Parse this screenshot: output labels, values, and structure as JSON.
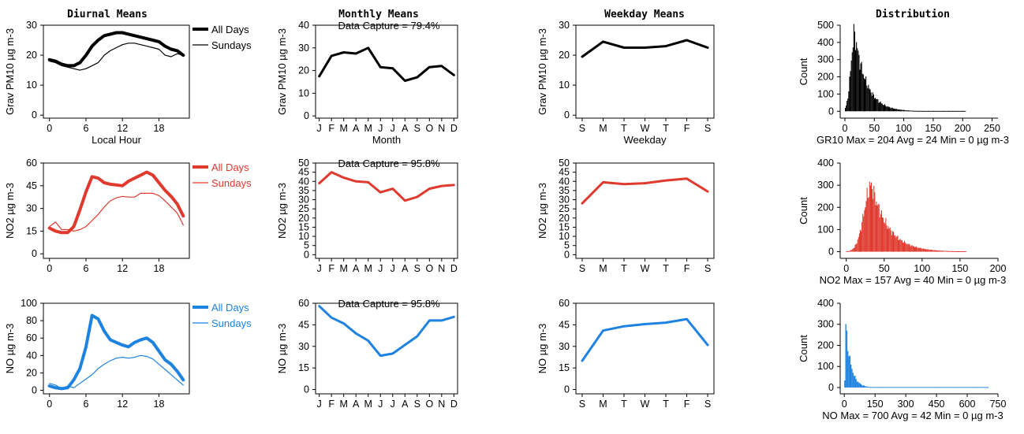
{
  "column_titles": [
    "Diurnal Means",
    "Monthly Means",
    "Weekday Means",
    "Distribution"
  ],
  "colors": {
    "pm10": "#000000",
    "no2": "#e03a2f",
    "no": "#1e82e0"
  },
  "chart_data": [
    {
      "type": "line",
      "row": 0,
      "col": 0,
      "ylabel": "Grav PM10 µg m-3",
      "xlabel": "Local Hour",
      "xlim": [
        -1,
        23
      ],
      "ylim": [
        -1,
        30
      ],
      "xticks": [
        0,
        6,
        12,
        18
      ],
      "yticks": [
        0,
        10,
        20,
        30
      ],
      "x": [
        0,
        1,
        2,
        3,
        4,
        5,
        6,
        7,
        8,
        9,
        10,
        11,
        12,
        13,
        14,
        15,
        16,
        17,
        18,
        19,
        20,
        21,
        22
      ],
      "series": [
        {
          "name": "All Days",
          "color": "#000000",
          "width": 4,
          "values": [
            18.5,
            18,
            17,
            16.5,
            16.5,
            17.5,
            20,
            23,
            25,
            26.5,
            27,
            27.5,
            27.5,
            27,
            26.5,
            26,
            25.5,
            25,
            24.5,
            23,
            22,
            21.5,
            20
          ]
        },
        {
          "name": "Sundays",
          "color": "#000000",
          "width": 1.2,
          "values": [
            18,
            17.5,
            16.5,
            16,
            15.5,
            15,
            15.5,
            16.5,
            17.5,
            20,
            21.5,
            22.5,
            23.5,
            24,
            24,
            23.5,
            23,
            22.5,
            22,
            20,
            19.5,
            20.5,
            20
          ]
        }
      ]
    },
    {
      "type": "line",
      "row": 0,
      "col": 1,
      "ylabel": "Grav PM10 µg m-3",
      "xlabel": "Month",
      "annotation": "Data Capture = 79.4%",
      "xlim": [
        0.7,
        12.3
      ],
      "ylim": [
        -1,
        40
      ],
      "categories": [
        "J",
        "F",
        "M",
        "A",
        "M",
        "J",
        "J",
        "A",
        "S",
        "O",
        "N",
        "D"
      ],
      "yticks": [
        0,
        10,
        20,
        30,
        40
      ],
      "series": [
        {
          "name": "",
          "color": "#000000",
          "width": 3,
          "values": [
            17.5,
            26.5,
            28,
            27.5,
            30,
            21.5,
            21,
            15.5,
            17,
            21.5,
            22,
            18
          ]
        }
      ]
    },
    {
      "type": "line",
      "row": 0,
      "col": 2,
      "ylabel": "Grav PM10 µg m-3",
      "xlabel": "Weekday",
      "xlim": [
        0.7,
        7.3
      ],
      "ylim": [
        -1,
        30
      ],
      "categories": [
        "S",
        "M",
        "T",
        "W",
        "T",
        "F",
        "S"
      ],
      "yticks": [
        0,
        10,
        20,
        30
      ],
      "series": [
        {
          "name": "",
          "color": "#000000",
          "width": 3,
          "values": [
            19.5,
            24.5,
            22.5,
            22.5,
            23,
            25,
            22.5
          ]
        }
      ]
    },
    {
      "type": "bar",
      "row": 0,
      "col": 3,
      "ylabel": "Count",
      "xlabel": "GR10 Max = 204 Avg = 24 Min = 0 µg m-3",
      "xlim": [
        -8,
        260
      ],
      "ylim": [
        -40,
        500
      ],
      "xticks": [
        0,
        50,
        100,
        150,
        200,
        250
      ],
      "yticks": [
        0,
        100,
        200,
        300,
        400,
        500
      ],
      "color": "#000000",
      "profile": {
        "xmax": 204,
        "peak_x": 16,
        "peak": 450,
        "rise": 9,
        "decay": 20
      }
    },
    {
      "type": "line",
      "row": 1,
      "col": 0,
      "ylabel": "NO2 µg m-3",
      "xlabel": "",
      "xlim": [
        -1,
        23
      ],
      "ylim": [
        -3,
        60
      ],
      "xticks": [
        0,
        6,
        12,
        18
      ],
      "yticks": [
        0,
        15,
        30,
        45,
        60
      ],
      "x": [
        0,
        1,
        2,
        3,
        4,
        5,
        6,
        7,
        8,
        9,
        10,
        11,
        12,
        13,
        14,
        15,
        16,
        17,
        18,
        19,
        20,
        21,
        22
      ],
      "series": [
        {
          "name": "All Days",
          "color": "#e03a2f",
          "width": 4,
          "values": [
            17,
            15,
            14,
            14,
            18,
            29,
            41,
            51,
            50,
            47,
            46,
            45.5,
            45,
            48,
            50,
            52,
            54,
            52,
            47,
            42,
            38,
            33,
            25
          ]
        },
        {
          "name": "Sundays",
          "color": "#e03a2f",
          "width": 1.2,
          "values": [
            18,
            21,
            16,
            16,
            15,
            16,
            18,
            22,
            26,
            31,
            35,
            37,
            38,
            37.5,
            37.5,
            40,
            40,
            40,
            38.5,
            35,
            31,
            27,
            19
          ]
        }
      ]
    },
    {
      "type": "line",
      "row": 1,
      "col": 1,
      "ylabel": "NO2 µg m-3",
      "xlabel": "",
      "annotation": "Data Capture = 95.8%",
      "xlim": [
        0.7,
        12.3
      ],
      "ylim": [
        -2,
        50
      ],
      "categories": [
        "J",
        "F",
        "M",
        "A",
        "M",
        "J",
        "J",
        "A",
        "S",
        "O",
        "N",
        "D"
      ],
      "yticks": [
        0,
        5,
        10,
        15,
        20,
        25,
        30,
        35,
        40,
        45,
        50
      ],
      "series": [
        {
          "name": "",
          "color": "#e03a2f",
          "width": 3,
          "values": [
            39,
            45,
            42,
            40,
            39.5,
            34,
            36,
            29.5,
            31.5,
            36,
            37.5,
            38
          ]
        }
      ]
    },
    {
      "type": "line",
      "row": 1,
      "col": 2,
      "ylabel": "NO2 µg m-3",
      "xlabel": "",
      "xlim": [
        0.7,
        7.3
      ],
      "ylim": [
        -2,
        50
      ],
      "categories": [
        "S",
        "M",
        "T",
        "W",
        "T",
        "F",
        "S"
      ],
      "yticks": [
        0,
        5,
        10,
        15,
        20,
        25,
        30,
        35,
        40,
        45,
        50
      ],
      "series": [
        {
          "name": "",
          "color": "#e03a2f",
          "width": 3,
          "values": [
            28,
            39.5,
            38.5,
            39,
            40.5,
            41.5,
            34.5
          ]
        }
      ]
    },
    {
      "type": "bar",
      "row": 1,
      "col": 3,
      "ylabel": "Count",
      "xlabel": "NO2 Max = 157 Avg = 40 Min = 0 µg m-3",
      "xlim": [
        -8,
        200
      ],
      "ylim": [
        -30,
        400
      ],
      "xticks": [
        0,
        50,
        100,
        150,
        200
      ],
      "yticks": [
        0,
        100,
        200,
        300,
        400
      ],
      "color": "#e03a2f",
      "profile": {
        "xmax": 157,
        "peak_x": 33,
        "peak": 300,
        "rise": 14,
        "decay": 22
      }
    },
    {
      "type": "line",
      "row": 2,
      "col": 0,
      "ylabel": "NO µg m-3",
      "xlabel": "",
      "xlim": [
        -1,
        23
      ],
      "ylim": [
        -4,
        100
      ],
      "xticks": [
        0,
        6,
        12,
        18
      ],
      "yticks": [
        0,
        20,
        40,
        60,
        80,
        100
      ],
      "x": [
        0,
        1,
        2,
        3,
        4,
        5,
        6,
        7,
        8,
        9,
        10,
        11,
        12,
        13,
        14,
        15,
        16,
        17,
        18,
        19,
        20,
        21,
        22
      ],
      "series": [
        {
          "name": "All Days",
          "color": "#1e82e0",
          "width": 4,
          "values": [
            5,
            3,
            2,
            3,
            12,
            25,
            50,
            86,
            82,
            68,
            58,
            55,
            52,
            50,
            55,
            58,
            60,
            55,
            45,
            35,
            30,
            22,
            12
          ]
        },
        {
          "name": "Sundays",
          "color": "#1e82e0",
          "width": 1.2,
          "values": [
            8,
            6,
            2,
            5,
            3,
            8,
            13,
            18,
            25,
            30,
            34,
            37,
            38,
            37,
            38,
            40,
            39,
            36,
            30,
            24,
            18,
            12,
            6
          ]
        }
      ]
    },
    {
      "type": "line",
      "row": 2,
      "col": 1,
      "ylabel": "NO µg m-3",
      "xlabel": "",
      "annotation": "Data Capture = 95.8%",
      "xlim": [
        0.7,
        12.3
      ],
      "ylim": [
        -3,
        60
      ],
      "categories": [
        "J",
        "F",
        "M",
        "A",
        "M",
        "J",
        "J",
        "A",
        "S",
        "O",
        "N",
        "D"
      ],
      "yticks": [
        0,
        15,
        30,
        45,
        60
      ],
      "series": [
        {
          "name": "",
          "color": "#1e82e0",
          "width": 3,
          "values": [
            58,
            50,
            46,
            39,
            34,
            23.5,
            25,
            31,
            37,
            48,
            48,
            50.5
          ]
        }
      ]
    },
    {
      "type": "line",
      "row": 2,
      "col": 2,
      "ylabel": "NO µg m-3",
      "xlabel": "",
      "xlim": [
        0.7,
        7.3
      ],
      "ylim": [
        -3,
        60
      ],
      "categories": [
        "S",
        "M",
        "T",
        "W",
        "T",
        "F",
        "S"
      ],
      "yticks": [
        0,
        15,
        30,
        45,
        60
      ],
      "series": [
        {
          "name": "",
          "color": "#1e82e0",
          "width": 3,
          "values": [
            20,
            41,
            44,
            45.5,
            46.5,
            49,
            31
          ]
        }
      ]
    },
    {
      "type": "bar",
      "row": 2,
      "col": 3,
      "ylabel": "Count",
      "xlabel": "NO Max = 700 Avg = 42 Min = 0 µg m-3",
      "xlim": [
        -20,
        750
      ],
      "ylim": [
        -30,
        400
      ],
      "xticks": [
        0,
        150,
        300,
        450,
        600,
        750
      ],
      "yticks": [
        0,
        100,
        200,
        300,
        400
      ],
      "color": "#1e82e0",
      "profile": {
        "xmax": 700,
        "peak_x": 3,
        "peak": 320,
        "rise": 2,
        "decay": 25
      }
    }
  ]
}
